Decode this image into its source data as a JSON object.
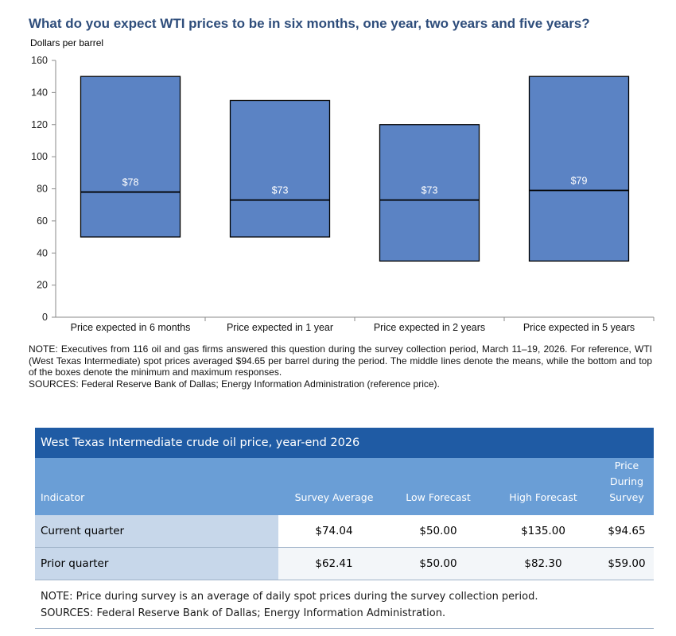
{
  "chart_data": {
    "type": "box",
    "title": "What do you expect WTI prices to be in six months, one year, two years and five years?",
    "ylabel": "Dollars  per barrel",
    "xlabel": "",
    "ylim": [
      0,
      160
    ],
    "y_ticks": [
      0,
      20,
      40,
      60,
      80,
      100,
      120,
      140,
      160
    ],
    "categories": [
      "Price expected in 6 months",
      "Price expected in 1 year",
      "Price expected in 2 years",
      "Price expected in 5 years"
    ],
    "series": [
      {
        "min": [
          50,
          50,
          35,
          35
        ],
        "mean": [
          78,
          73,
          73,
          79
        ],
        "max": [
          150,
          135,
          120,
          150
        ]
      }
    ],
    "data_labels": [
      "$78",
      "$73",
      "$73",
      "$79"
    ],
    "grid": false,
    "box_color": "#5b83c4"
  },
  "note": {
    "text": "NOTE:  Executives  from 116 oil and gas firms answered this question during the survey collection period, March 11–19, 2026. For reference, WTI (West Texas Intermediate) spot prices averaged $94.65 per barrel during the period. The middle lines denote the means, while the bottom and top of the boxes denote the minimum and maximum  responses.",
    "sources": "SOURCES:  Federal Reserve Bank of Dallas; Energy Information Administration (reference price)."
  },
  "table": {
    "title": "West Texas Intermediate crude oil price, year-end 2026",
    "columns": [
      "Indicator",
      "Survey Average",
      "Low Forecast",
      "High Forecast",
      "Price During Survey"
    ],
    "rows": [
      {
        "indicator": "Current quarter",
        "survey_average": "$74.04",
        "low": "$50.00",
        "high": "$135.00",
        "price_during": "$94.65"
      },
      {
        "indicator": "Prior quarter",
        "survey_average": "$62.41",
        "low": "$50.00",
        "high": "$82.30",
        "price_during": "$59.00"
      }
    ],
    "note": "NOTE: Price during survey is an average of daily spot prices during the survey collection period.",
    "sources": "SOURCES: Federal Reserve Bank of Dallas; Energy Information Administration.",
    "colors": {
      "header": "#1f5ba4",
      "column_header": "#6a9ed6",
      "label_cell": "#c7d7ea"
    }
  }
}
